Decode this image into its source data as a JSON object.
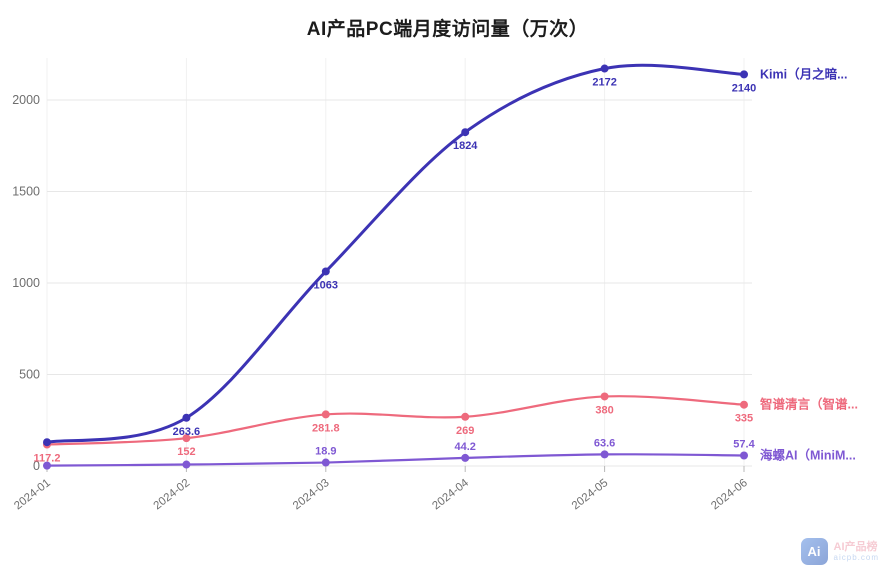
{
  "title": "AI产品PC端月度访问量（万次）",
  "chart_data": {
    "type": "line",
    "x": [
      "2024-01",
      "2024-02",
      "2024-03",
      "2024-04",
      "2024-05",
      "2024-06"
    ],
    "yticks": [
      0,
      500,
      1000,
      1500,
      2000
    ],
    "ylim": [
      0,
      2300
    ],
    "grid": true,
    "legend_position": "line-end",
    "series": [
      {
        "name": "Kimi（月之暗...",
        "color": "#3c33b4",
        "values": [
          130,
          263.6,
          1063,
          1824,
          2172,
          2140
        ],
        "labels": [
          "",
          "263.6",
          "1063",
          "1824",
          "2172",
          "2140"
        ],
        "label_side": "below",
        "line_width": 3
      },
      {
        "name": "智谱清言（智谱...",
        "color": "#ee6a7d",
        "values": [
          117.2,
          152,
          281.8,
          269,
          380,
          335
        ],
        "labels": [
          "117.2",
          "152",
          "281.8",
          "269",
          "380",
          "335"
        ],
        "label_side": "below",
        "line_width": 2.2
      },
      {
        "name": "海螺AI（MiniM...",
        "color": "#7f58d3",
        "values": [
          2,
          8,
          18.9,
          44.2,
          63.6,
          57.4
        ],
        "labels": [
          "",
          "",
          "18.9",
          "44.2",
          "63.6",
          "57.4"
        ],
        "label_side": "above",
        "line_width": 2.2
      }
    ]
  },
  "watermark": {
    "logo": "Ai",
    "brand": "AI产品榜",
    "domain": "aicpb.com"
  }
}
